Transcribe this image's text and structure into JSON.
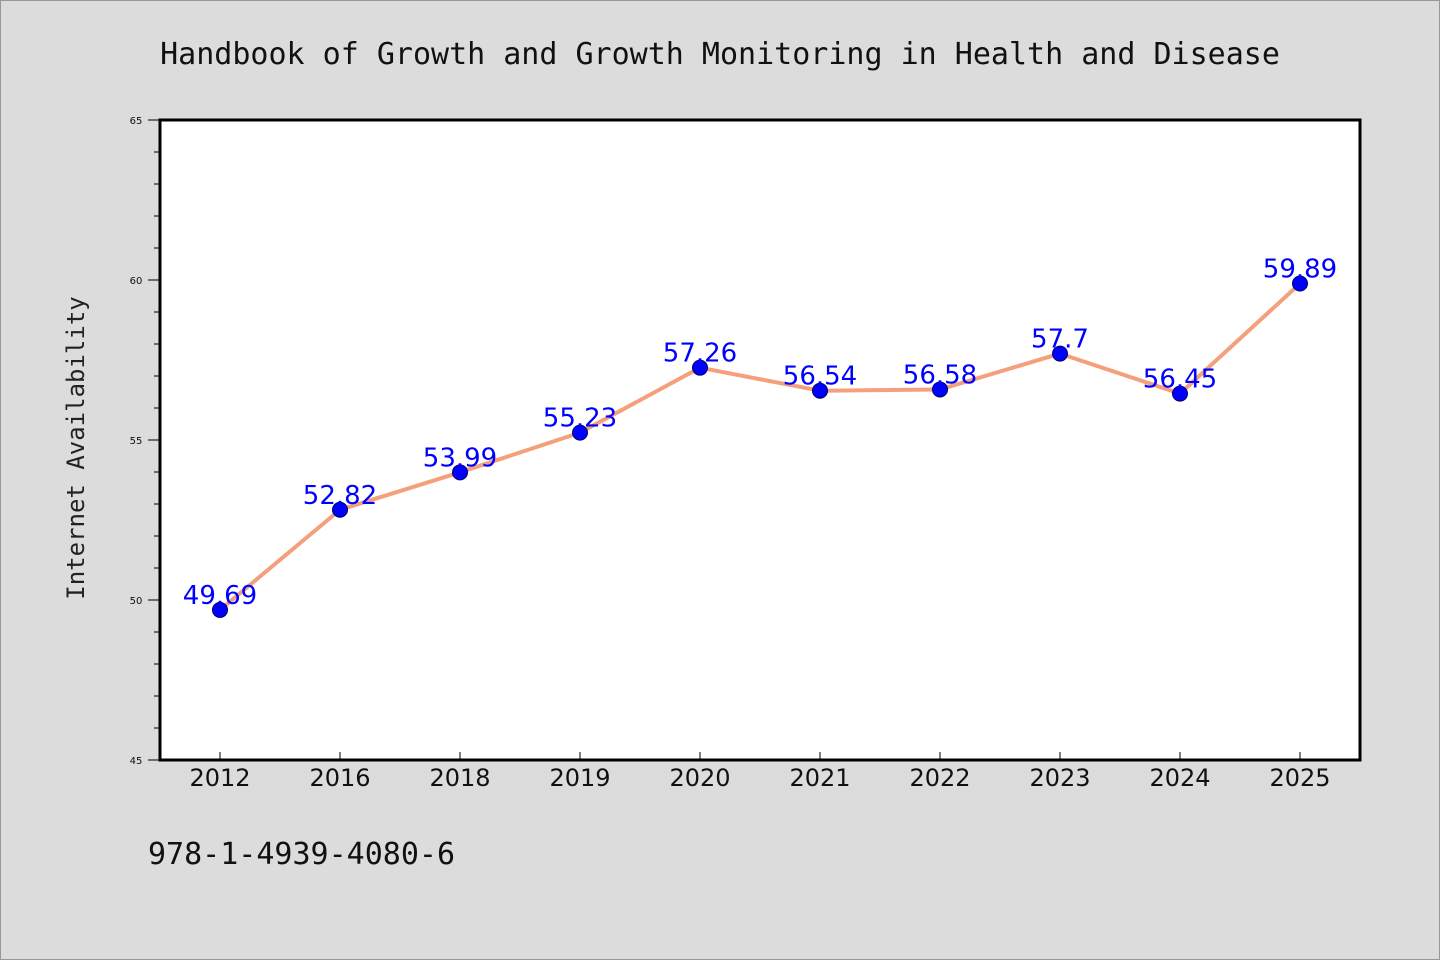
{
  "chart_data": {
    "type": "line",
    "title": "Handbook of Growth and Growth Monitoring in Health and Disease",
    "xlabel": "",
    "ylabel": "Internet Availability",
    "categories": [
      "2012",
      "2016",
      "2018",
      "2019",
      "2020",
      "2021",
      "2022",
      "2023",
      "2024",
      "2025"
    ],
    "series": [
      {
        "values": [
          49.69,
          52.82,
          53.99,
          55.23,
          57.26,
          56.54,
          56.58,
          57.7,
          56.45,
          59.89
        ],
        "labels": [
          "49.69",
          "52.82",
          "53.99",
          "55.23",
          "57.26",
          "56.54",
          "56.58",
          "57.7",
          "56.45",
          "59.89"
        ],
        "line_color": "#f4a07c",
        "marker_color": "#0000ff"
      }
    ],
    "ylim": [
      45,
      65
    ],
    "yticks": [
      "45",
      "50",
      "55",
      "60",
      "65"
    ],
    "grid": false,
    "legend": "none"
  },
  "footer": {
    "isbn": "978-1-4939-4080-6"
  },
  "colors": {
    "background": "#dcdcdc",
    "plot_background": "#ffffff",
    "axis": "#000000"
  }
}
